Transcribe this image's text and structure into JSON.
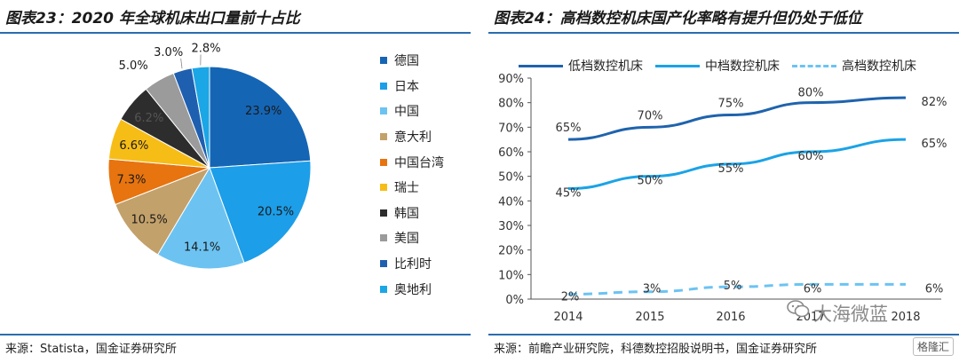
{
  "charts": [
    {
      "title": "图表23：2020 年全球机床出口量前十占比",
      "source": "来源：Statista，国金证券研究所"
    },
    {
      "title": "图表24：高档数控机床国产化率略有提升但仍处于低位",
      "source": "来源：前瞻产业研究院，科德数控招股说明书，国金证券研究所"
    }
  ],
  "colors": {
    "rule": "#2a6db0"
  },
  "chart_data": [
    {
      "type": "pie",
      "title": "图表23：2020 年全球机床出口量前十占比",
      "legend_position": "right",
      "slices": [
        {
          "label": "德国",
          "value": 23.9,
          "display": "23.9%",
          "color": "#1565b5"
        },
        {
          "label": "日本",
          "value": 20.5,
          "display": "20.5%",
          "color": "#1c9ee8"
        },
        {
          "label": "中国",
          "value": 14.1,
          "display": "14.1%",
          "color": "#6cc3f2"
        },
        {
          "label": "意大利",
          "value": 10.5,
          "display": "10.5%",
          "color": "#c3a16b"
        },
        {
          "label": "中国台湾",
          "value": 7.3,
          "display": "7.3%",
          "color": "#e7740f"
        },
        {
          "label": "瑞士",
          "value": 6.6,
          "display": "6.6%",
          "color": "#f7bd17"
        },
        {
          "label": "韩国",
          "value": 6.2,
          "display": "6.2%",
          "color": "#2d2d2d"
        },
        {
          "label": "美国",
          "value": 5.0,
          "display": "5.0%",
          "color": "#9b9b9b"
        },
        {
          "label": "比利时",
          "value": 3.0,
          "display": "3.0%",
          "color": "#1f5fb0"
        },
        {
          "label": "奥地利",
          "value": 2.8,
          "display": "2.8%",
          "color": "#1ba6e6"
        }
      ]
    },
    {
      "type": "line",
      "title": "图表24：高档数控机床国产化率略有提升但仍处于低位",
      "x": [
        "2014",
        "2015",
        "2016",
        "2017",
        "2018"
      ],
      "ylim": [
        0,
        90
      ],
      "yticks": [
        "0%",
        "10%",
        "20%",
        "30%",
        "40%",
        "50%",
        "60%",
        "70%",
        "80%",
        "90%"
      ],
      "legend_position": "top",
      "grid": false,
      "series": [
        {
          "name": "低档数控机床",
          "values": [
            65,
            70,
            75,
            80,
            82
          ],
          "labels": [
            "65%",
            "70%",
            "75%",
            "80%",
            "82%"
          ],
          "color": "#1f63ad",
          "style": "solid"
        },
        {
          "name": "中档数控机床",
          "values": [
            45,
            50,
            55,
            60,
            65
          ],
          "labels": [
            "45%",
            "50%",
            "55%",
            "60%",
            "65%"
          ],
          "color": "#1ba3e6",
          "style": "solid"
        },
        {
          "name": "高档数控机床",
          "values": [
            2,
            3,
            5,
            6,
            6
          ],
          "labels": [
            "2%",
            "3%",
            "5%",
            "6%",
            "6%"
          ],
          "color": "#6cc3f2",
          "style": "dashed"
        }
      ]
    }
  ],
  "watermark": {
    "text": "大海微蓝",
    "logo_text": "格隆汇"
  }
}
